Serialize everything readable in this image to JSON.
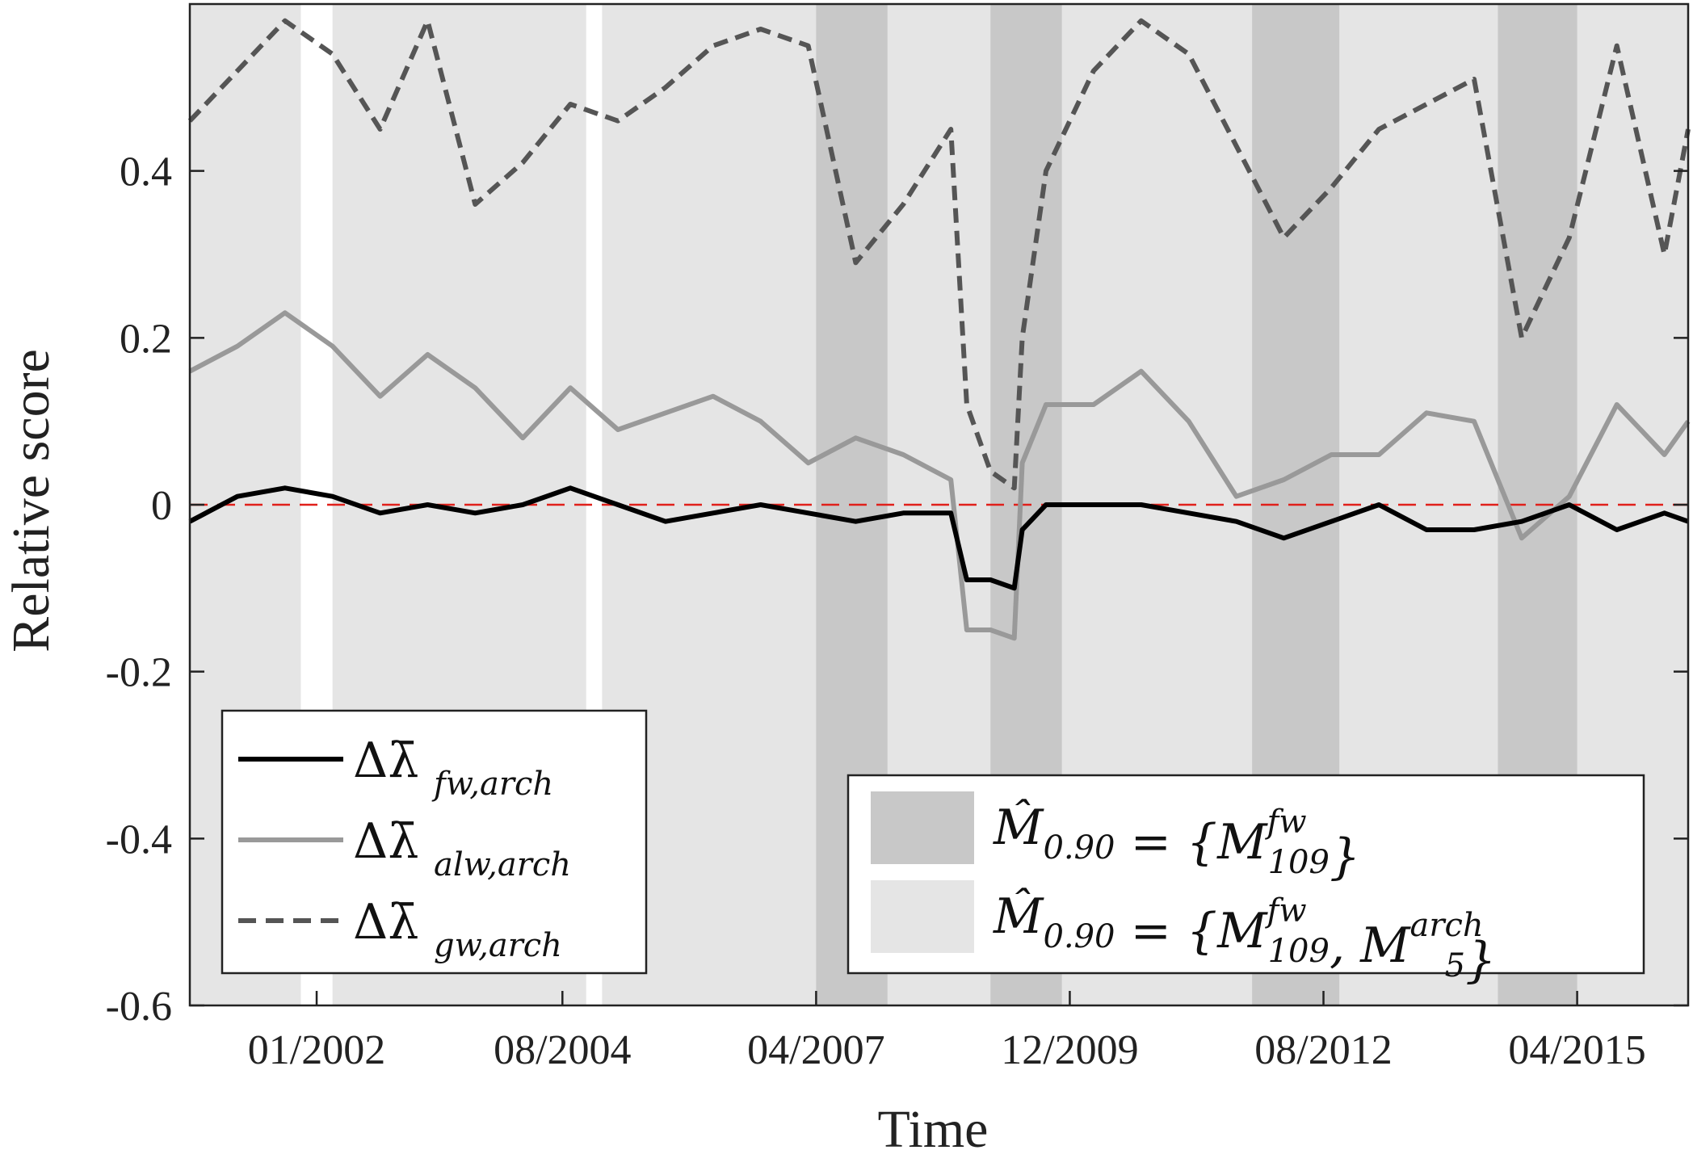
{
  "chart_data": {
    "type": "line",
    "xlabel": "Time",
    "ylabel": "Relative score",
    "xlim": [
      "2000-09",
      "2016-06"
    ],
    "ylim": [
      -0.6,
      0.6
    ],
    "x_ticks": [
      "01/2002",
      "08/2004",
      "04/2007",
      "12/2009",
      "08/2012",
      "04/2015"
    ],
    "y_ticks": [
      "-0.6",
      "-0.4",
      "-0.2",
      "0",
      "0.2",
      "0.4"
    ],
    "y_tick_values": [
      -0.6,
      -0.4,
      -0.2,
      0,
      0.2,
      0.4
    ],
    "reference_line": {
      "y": 0,
      "color": "#e0201b",
      "style": "dashed"
    },
    "series": [
      {
        "name": "Δλ̄_{fw,arch}",
        "color": "#000000",
        "style": "solid",
        "x": [
          "2000-09",
          "2001-03",
          "2001-09",
          "2002-03",
          "2002-09",
          "2003-03",
          "2003-09",
          "2004-03",
          "2004-09",
          "2005-03",
          "2005-09",
          "2006-03",
          "2006-09",
          "2007-03",
          "2007-09",
          "2008-03",
          "2008-09",
          "2008-11",
          "2009-02",
          "2009-05",
          "2009-06",
          "2009-09",
          "2010-03",
          "2010-09",
          "2011-03",
          "2011-09",
          "2012-03",
          "2012-09",
          "2013-03",
          "2013-09",
          "2014-03",
          "2014-09",
          "2015-03",
          "2015-09",
          "2016-03",
          "2016-06"
        ],
        "values": [
          -0.02,
          0.01,
          0.02,
          0.01,
          -0.01,
          0.0,
          -0.01,
          0.0,
          0.02,
          0.0,
          -0.02,
          -0.01,
          0.0,
          -0.01,
          -0.02,
          -0.01,
          -0.01,
          -0.09,
          -0.09,
          -0.1,
          -0.03,
          0.0,
          0.0,
          0.0,
          -0.01,
          -0.02,
          -0.04,
          -0.02,
          0.0,
          -0.03,
          -0.03,
          -0.02,
          0.0,
          -0.03,
          -0.01,
          -0.02
        ]
      },
      {
        "name": "Δλ̄_{alw,arch}",
        "color": "#999999",
        "style": "solid",
        "x": [
          "2000-09",
          "2001-03",
          "2001-09",
          "2002-03",
          "2002-09",
          "2003-03",
          "2003-09",
          "2004-03",
          "2004-09",
          "2005-03",
          "2005-09",
          "2006-03",
          "2006-09",
          "2007-03",
          "2007-09",
          "2008-03",
          "2008-09",
          "2008-11",
          "2009-02",
          "2009-05",
          "2009-06",
          "2009-09",
          "2010-03",
          "2010-09",
          "2011-03",
          "2011-09",
          "2012-03",
          "2012-09",
          "2013-03",
          "2013-09",
          "2014-03",
          "2014-09",
          "2015-03",
          "2015-09",
          "2016-03",
          "2016-06"
        ],
        "values": [
          0.16,
          0.19,
          0.23,
          0.19,
          0.13,
          0.18,
          0.14,
          0.08,
          0.14,
          0.09,
          0.11,
          0.13,
          0.1,
          0.05,
          0.08,
          0.06,
          0.03,
          -0.15,
          -0.15,
          -0.16,
          0.05,
          0.12,
          0.12,
          0.16,
          0.1,
          0.01,
          0.03,
          0.06,
          0.06,
          0.11,
          0.1,
          -0.04,
          0.01,
          0.12,
          0.06,
          0.1
        ]
      },
      {
        "name": "Δλ̄_{gw,arch}",
        "color": "#555555",
        "style": "dashed",
        "x": [
          "2000-09",
          "2001-03",
          "2001-09",
          "2002-03",
          "2002-09",
          "2003-03",
          "2003-09",
          "2004-03",
          "2004-09",
          "2005-03",
          "2005-09",
          "2006-03",
          "2006-09",
          "2007-03",
          "2007-09",
          "2008-03",
          "2008-09",
          "2008-11",
          "2009-02",
          "2009-05",
          "2009-06",
          "2009-09",
          "2010-03",
          "2010-09",
          "2011-03",
          "2011-09",
          "2012-03",
          "2012-09",
          "2013-03",
          "2013-09",
          "2014-03",
          "2014-09",
          "2015-03",
          "2015-09",
          "2016-03",
          "2016-06"
        ],
        "values": [
          0.46,
          0.52,
          0.58,
          0.54,
          0.45,
          0.58,
          0.36,
          0.41,
          0.48,
          0.46,
          0.5,
          0.55,
          0.57,
          0.55,
          0.29,
          0.36,
          0.45,
          0.12,
          0.04,
          0.02,
          0.2,
          0.4,
          0.52,
          0.58,
          0.54,
          0.43,
          0.32,
          0.38,
          0.45,
          0.48,
          0.51,
          0.2,
          0.32,
          0.55,
          0.3,
          0.45
        ]
      }
    ],
    "shaded_regions": [
      {
        "label": "M̂_{0.90} = {M^{fw}_{109}}",
        "color": "#c8c8c8",
        "periods": [
          [
            "2007-04",
            "2008-01"
          ],
          [
            "2009-02",
            "2009-11"
          ],
          [
            "2011-11",
            "2012-10"
          ],
          [
            "2014-06",
            "2015-04"
          ]
        ]
      },
      {
        "label": "M̂_{0.90} = {M^{fw}_{109}, M^{arch}_{5}}",
        "color": "#e5e5e5",
        "periods": [
          [
            "2000-09",
            "2016-06"
          ]
        ],
        "gaps": [
          [
            "2001-11",
            "2002-03"
          ],
          [
            "2004-11",
            "2005-01"
          ]
        ]
      }
    ],
    "grid": false,
    "legend_placement": [
      "lower-left",
      "lower-right"
    ]
  },
  "legend": {
    "lines": [
      {
        "sym": "Δλ̄",
        "sub": "fw,arch"
      },
      {
        "sym": "Δλ̄",
        "sub": "alw,arch"
      },
      {
        "sym": "Δλ̄",
        "sub": "gw,arch"
      }
    ],
    "regions": [
      {
        "text": "M̂",
        "sub1": "0.90",
        "rest": " = {M",
        "sup": "fw",
        "sub2": "109",
        "tail": "}"
      },
      {
        "text": "M̂",
        "sub1": "0.90",
        "rest": " = {M",
        "sup": "fw",
        "sub2": "109",
        "mid": ", M",
        "sup2": "arch",
        "sub3": "5",
        "tail": "}"
      }
    ]
  }
}
